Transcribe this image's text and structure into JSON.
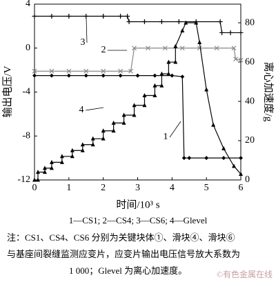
{
  "chart_data": {
    "type": "line",
    "xlabel": "时间/10³ s",
    "ylabel": "输出电压/V",
    "y2label": "离心加速度/g",
    "xlim": [
      0,
      6
    ],
    "xticks": [
      0,
      1,
      2,
      3,
      4,
      5,
      6
    ],
    "ylim": [
      -12,
      4
    ],
    "yticks": [
      -12,
      -8,
      -4,
      0,
      4
    ],
    "y2lim": [
      0,
      89.5
    ],
    "y2ticks": [
      0,
      20,
      40,
      60,
      80
    ],
    "series": [
      {
        "name": "CS1",
        "color": "#000000",
        "marker": "diamond",
        "x": [
          0,
          0.5,
          1,
          1.5,
          2,
          2.5,
          3,
          3.5,
          4,
          4.3,
          4.35,
          4.5,
          5,
          5.5,
          6
        ],
        "values": [
          -2.5,
          -2.5,
          -2.5,
          -2.5,
          -2.5,
          -2.5,
          -2.5,
          -2.5,
          -2.5,
          -2.6,
          -10,
          -10,
          -10,
          -10,
          -10
        ]
      },
      {
        "name": "CS4",
        "color": "#888888",
        "marker": "x",
        "x": [
          0,
          0.5,
          1,
          1.5,
          2,
          2.5,
          2.8,
          2.9,
          3.3,
          3.8,
          4.3,
          4.8,
          5.3,
          5.8,
          5.85,
          6
        ],
        "values": [
          -2.1,
          -2.1,
          -2.1,
          -2.1,
          -2.1,
          -2.1,
          -2.1,
          0,
          0,
          0,
          0,
          0,
          0,
          0,
          -1,
          -1.1
        ]
      },
      {
        "name": "CS6",
        "color": "#000000",
        "marker": "plus",
        "x": [
          0,
          0.5,
          1,
          1.5,
          2,
          2.5,
          2.7,
          2.75,
          3.2,
          3.7,
          4.2,
          4.7,
          5.4,
          5.45,
          5.7,
          6
        ],
        "values": [
          2.9,
          2.9,
          2.9,
          2.9,
          2.9,
          2.9,
          2.9,
          2.4,
          2.4,
          2.4,
          2.4,
          2.4,
          2.4,
          1.4,
          1.4,
          1.4
        ]
      },
      {
        "name": "Glevel",
        "color": "#000000",
        "marker": "triangle",
        "axis": "y2",
        "x": [
          0,
          0.1,
          0.1,
          0.3,
          0.3,
          0.5,
          0.5,
          0.8,
          0.8,
          1.1,
          1.1,
          1.4,
          1.4,
          1.7,
          1.7,
          2.0,
          2.0,
          2.3,
          2.3,
          2.6,
          2.6,
          2.9,
          2.9,
          3.2,
          3.2,
          3.5,
          3.5,
          3.7,
          3.7,
          3.9,
          3.9,
          4.1,
          4.1,
          4.3,
          4.4,
          4.7,
          4.8,
          5.0,
          5.2,
          5.5,
          5.8,
          6.0
        ],
        "values": [
          0,
          0,
          4,
          4,
          6,
          6,
          9,
          9,
          12,
          12,
          15,
          15,
          18,
          18,
          21,
          21,
          25,
          25,
          29,
          29,
          33,
          33,
          38,
          38,
          43,
          43,
          48,
          48,
          54,
          54,
          60,
          60,
          68,
          76,
          80,
          80,
          70,
          46,
          28,
          16,
          7,
          3
        ]
      }
    ],
    "annotations": [
      "1",
      "2",
      "3",
      "4"
    ],
    "caption": "1—CS1; 2—CS4; 3—CS6; 4—Glevel",
    "note": [
      "注：CS1、CS4、CS6 分别为关键块体①、滑块④、滑块⑥",
      "与基座间裂缝监测应变片，应变片输出电压信号放大系数为",
      "1 000；Glevel 为离心加速度。"
    ],
    "watermark": "©有色金属在线"
  }
}
